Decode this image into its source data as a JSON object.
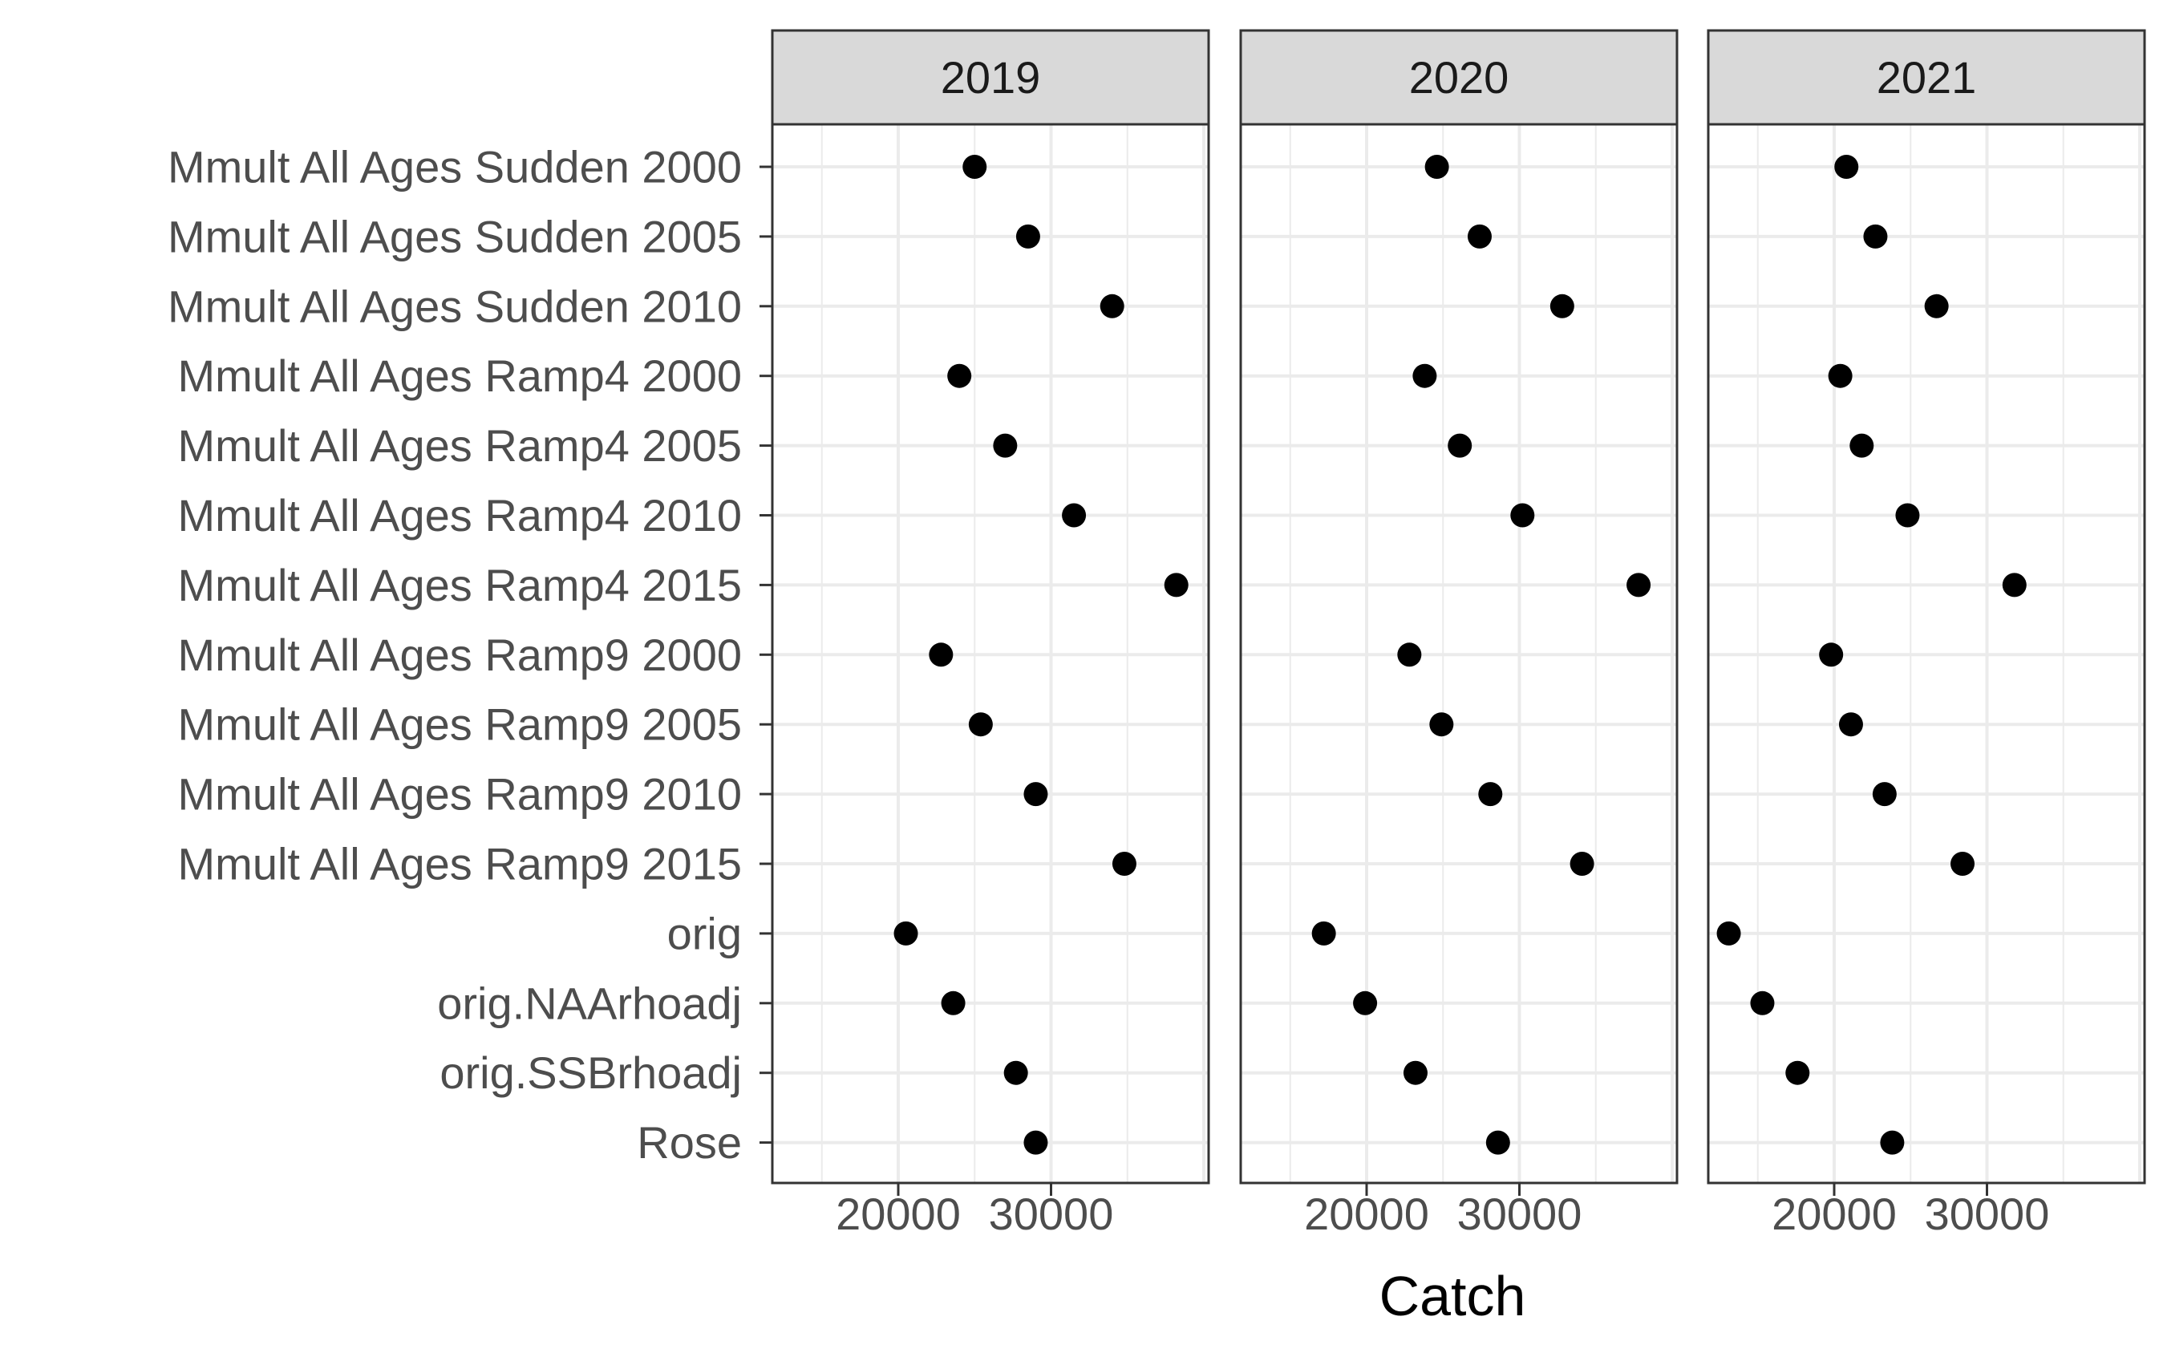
{
  "chart_data": {
    "type": "scatter",
    "layout": "faceted dot plot, facets side by side sharing y categories",
    "xlabel": "Catch",
    "ylabel": "",
    "xlim": [
      12000,
      42000
    ],
    "xticks": [
      20000,
      30000
    ],
    "xtick_labels": [
      "20000",
      "30000"
    ],
    "grid": true,
    "facets": [
      "2019",
      "2020",
      "2021"
    ],
    "categories": [
      "Mmult All Ages Sudden 2000",
      "Mmult All Ages Sudden 2005",
      "Mmult All Ages Sudden 2010",
      "Mmult All Ages Ramp4 2000",
      "Mmult All Ages Ramp4 2005",
      "Mmult All Ages Ramp4 2010",
      "Mmult All Ages Ramp4 2015",
      "Mmult All Ages Ramp9 2000",
      "Mmult All Ages Ramp9 2005",
      "Mmult All Ages Ramp9 2010",
      "Mmult All Ages Ramp9 2015",
      "orig",
      "orig.NAArhoadj",
      "orig.SSBrhoadj",
      "Rose"
    ],
    "series": [
      {
        "facet": "2019",
        "values": [
          25000,
          28500,
          34000,
          24000,
          27000,
          31500,
          38200,
          22800,
          25400,
          29000,
          34800,
          20500,
          23600,
          27700,
          29000
        ]
      },
      {
        "facet": "2020",
        "values": [
          24600,
          27400,
          32800,
          23800,
          26100,
          30200,
          37800,
          22800,
          24900,
          28100,
          34100,
          17200,
          19900,
          23200,
          28600
        ]
      },
      {
        "facet": "2021",
        "values": [
          20800,
          22700,
          26700,
          20400,
          21800,
          24800,
          31800,
          19800,
          21100,
          23300,
          28400,
          13100,
          15300,
          17600,
          23800
        ]
      }
    ],
    "point_color": "#000000",
    "panel_border_color": "#333333",
    "grid_color": "#ebebeb",
    "strip_fill": "#d9d9d9"
  }
}
